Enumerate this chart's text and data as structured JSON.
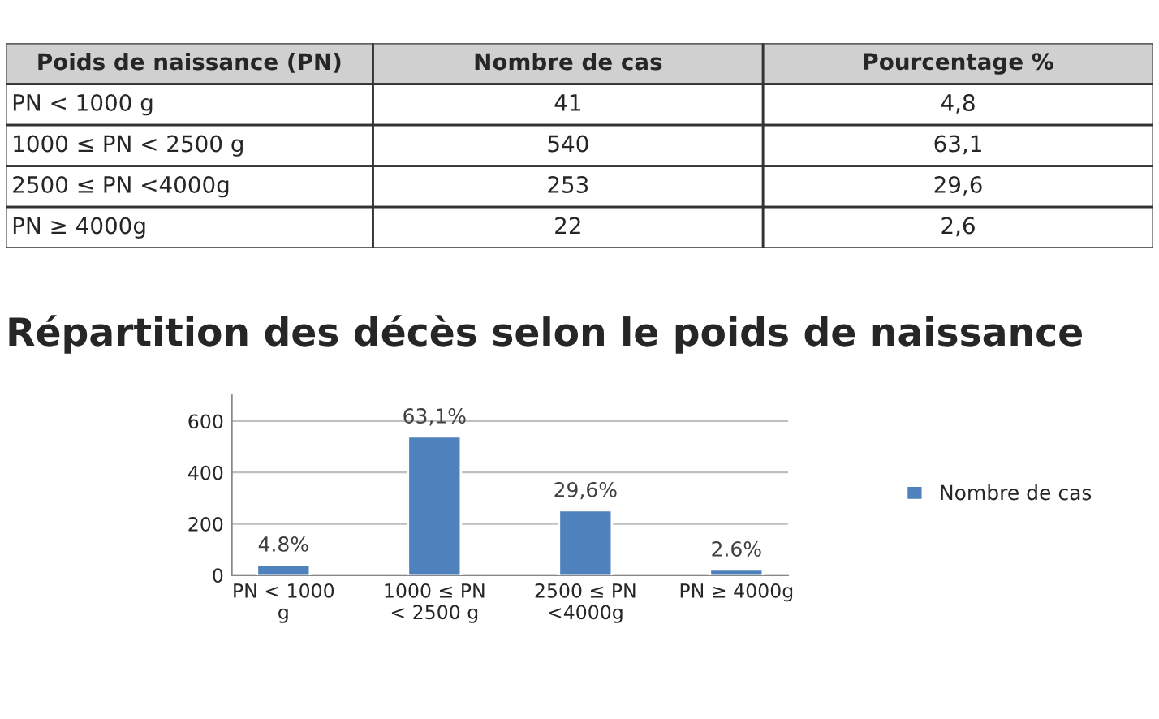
{
  "chart_data": [
    {
      "type": "other",
      "categories": [
        "Poids de naissance (PN)",
        "Nombre de cas",
        "Pourcentage %"
      ],
      "annotations": [
        "PN < 1000 g",
        "41",
        "4,8",
        "1000 ≤ PN < 2500 g",
        "540",
        "63,1",
        "2500 ≤ PN <4000g",
        "253",
        "29,6",
        "PN ≥ 4000g",
        "22",
        "2,6"
      ]
    },
    {
      "type": "bar",
      "title": "Répartition des décès selon le poids de naissance",
      "categories": [
        "PN < 1000 g",
        "1000 ≤ PN < 2500 g",
        "2500 ≤ PN <4000g",
        "PN ≥ 4000g"
      ],
      "series": [
        {
          "name": "Nombre de cas",
          "color": "#4f81bd",
          "values": [
            41,
            540,
            253,
            22
          ]
        }
      ],
      "annotations": [
        {
          "text": "4.8%",
          "x": "PN < 1000 g",
          "y": 41
        },
        {
          "text": "63,1%",
          "x": "1000 ≤ PN < 2500 g",
          "y": 540
        },
        {
          "text": "29,6%",
          "x": "2500 ≤ PN <4000g",
          "y": 253
        },
        {
          "text": "2.6%",
          "x": "PN ≥ 4000g",
          "y": 22
        }
      ],
      "ylim": [
        0,
        700
      ],
      "yticks": [
        0,
        200,
        400,
        600
      ],
      "grid": "y",
      "legend": "right"
    }
  ]
}
